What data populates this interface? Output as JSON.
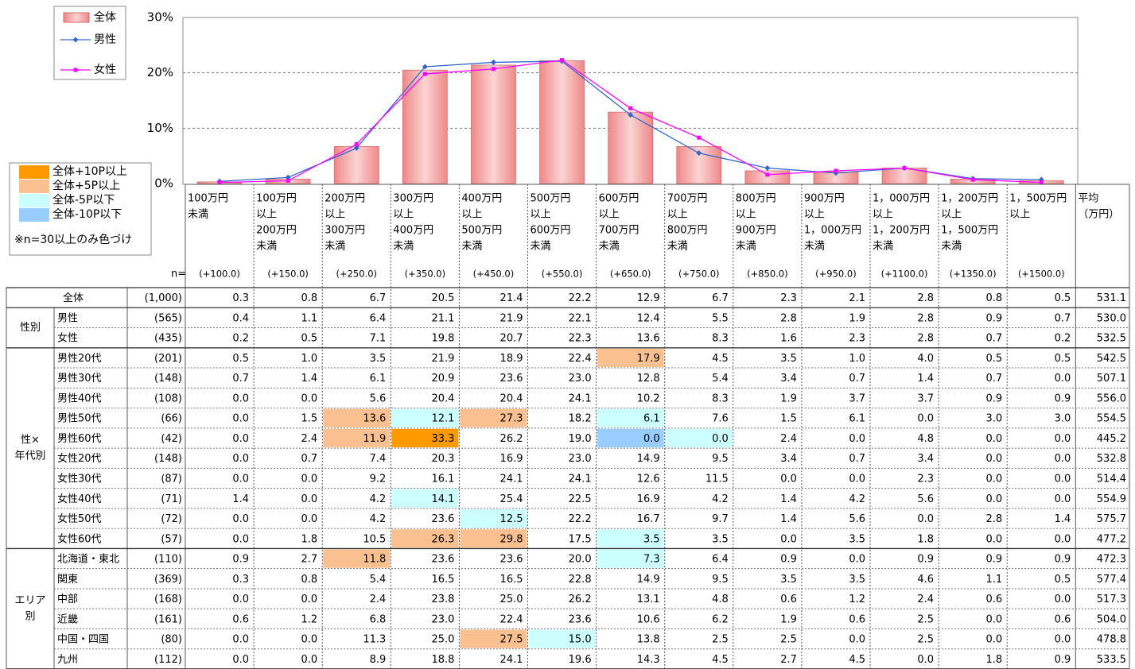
{
  "chart_data": {
    "type": "bar_line",
    "ylim": [
      0,
      30
    ],
    "yticks": [
      {
        "value": 0,
        "label": "0%"
      },
      {
        "value": 10,
        "label": "10%"
      },
      {
        "value": 20,
        "label": "20%"
      },
      {
        "value": 30,
        "label": "30%"
      }
    ],
    "grid": true,
    "series": [
      {
        "name": "全体",
        "type": "bar",
        "color": "#f29a9a",
        "values": [
          0.3,
          0.8,
          6.7,
          20.5,
          21.4,
          22.2,
          12.9,
          6.7,
          2.3,
          2.1,
          2.8,
          0.8,
          0.5
        ]
      },
      {
        "name": "男性",
        "type": "line",
        "marker": "diamond",
        "color": "#3366cc",
        "values": [
          0.4,
          1.1,
          6.4,
          21.1,
          21.9,
          22.1,
          12.4,
          5.5,
          2.8,
          1.9,
          2.8,
          0.9,
          0.7
        ]
      },
      {
        "name": "女性",
        "type": "line",
        "marker": "square",
        "color": "#ff00ff",
        "values": [
          0.2,
          0.5,
          7.1,
          19.8,
          20.7,
          22.3,
          13.6,
          8.3,
          1.6,
          2.3,
          2.8,
          0.7,
          0.2
        ]
      }
    ]
  },
  "table": {
    "key": [
      {
        "label": "全体+10P以上",
        "color": "#ff9900"
      },
      {
        "label": "全体+5P以上",
        "color": "#fac090"
      },
      {
        "label": "全体-5P以下",
        "color": "#ccffff"
      },
      {
        "label": "全体-10P以下",
        "color": "#99ccff"
      }
    ],
    "note": "※n=30以上のみ色づけ",
    "n_header": "n=",
    "columns": [
      {
        "lines": [
          "100万円",
          "未満"
        ],
        "midpoint": "(+100.0)"
      },
      {
        "lines": [
          "100万円",
          "以上",
          "200万円",
          "未満"
        ],
        "midpoint": "(+150.0)"
      },
      {
        "lines": [
          "200万円",
          "以上",
          "300万円",
          "未満"
        ],
        "midpoint": "(+250.0)"
      },
      {
        "lines": [
          "300万円",
          "以上",
          "400万円",
          "未満"
        ],
        "midpoint": "(+350.0)"
      },
      {
        "lines": [
          "400万円",
          "以上",
          "500万円",
          "未満"
        ],
        "midpoint": "(+450.0)"
      },
      {
        "lines": [
          "500万円",
          "以上",
          "600万円",
          "未満"
        ],
        "midpoint": "(+550.0)"
      },
      {
        "lines": [
          "600万円",
          "以上",
          "700万円",
          "未満"
        ],
        "midpoint": "(+650.0)"
      },
      {
        "lines": [
          "700万円",
          "以上",
          "800万円",
          "未満"
        ],
        "midpoint": "(+750.0)"
      },
      {
        "lines": [
          "800万円",
          "以上",
          "900万円",
          "未満"
        ],
        "midpoint": "(+850.0)"
      },
      {
        "lines": [
          "900万円",
          "以上",
          "1，000万円",
          "未満"
        ],
        "midpoint": "(+950.0)"
      },
      {
        "lines": [
          "1，000万円",
          "以上",
          "1，200万円",
          "未満"
        ],
        "midpoint": "(+1100.0)"
      },
      {
        "lines": [
          "1，200万円",
          "以上",
          "1，500万円",
          "未満"
        ],
        "midpoint": "(+1350.0)"
      },
      {
        "lines": [
          "1，500万円",
          "以上"
        ],
        "midpoint": "(+1500.0)"
      }
    ],
    "average_header": [
      "平均",
      "（万円）"
    ],
    "sections": [
      {
        "label": null,
        "rows": [
          {
            "label": "全体",
            "n": "(1,000)",
            "values": [
              "0.3",
              "0.8",
              "6.7",
              "20.5",
              "21.4",
              "22.2",
              "12.9",
              "6.7",
              "2.3",
              "2.1",
              "2.8",
              "0.8",
              "0.5"
            ],
            "average": "531.1"
          }
        ]
      },
      {
        "label": [
          "性別"
        ],
        "rows": [
          {
            "label": "男性",
            "n": "(565)",
            "values": [
              "0.4",
              "1.1",
              "6.4",
              "21.1",
              "21.9",
              "22.1",
              "12.4",
              "5.5",
              "2.8",
              "1.9",
              "2.8",
              "0.9",
              "0.7"
            ],
            "average": "530.0"
          },
          {
            "label": "女性",
            "n": "(435)",
            "values": [
              "0.2",
              "0.5",
              "7.1",
              "19.8",
              "20.7",
              "22.3",
              "13.6",
              "8.3",
              "1.6",
              "2.3",
              "2.8",
              "0.7",
              "0.2"
            ],
            "average": "532.5"
          }
        ]
      },
      {
        "label": [
          "性×",
          "年代別"
        ],
        "rows": [
          {
            "label": "男性20代",
            "n": "(201)",
            "values": [
              "0.5",
              "1.0",
              "3.5",
              "21.9",
              "18.9",
              "22.4",
              "17.9",
              "4.5",
              "3.5",
              "1.0",
              "4.0",
              "0.5",
              "0.5"
            ],
            "average": "542.5",
            "colors": [
              null,
              null,
              null,
              null,
              null,
              null,
              "#fac090",
              null,
              null,
              null,
              null,
              null,
              null
            ]
          },
          {
            "label": "男性30代",
            "n": "(148)",
            "values": [
              "0.7",
              "1.4",
              "6.1",
              "20.9",
              "23.6",
              "23.0",
              "12.8",
              "5.4",
              "3.4",
              "0.7",
              "1.4",
              "0.7",
              "0.0"
            ],
            "average": "507.1"
          },
          {
            "label": "男性40代",
            "n": "(108)",
            "values": [
              "0.0",
              "0.0",
              "5.6",
              "20.4",
              "20.4",
              "24.1",
              "10.2",
              "8.3",
              "1.9",
              "3.7",
              "3.7",
              "0.9",
              "0.9"
            ],
            "average": "556.0"
          },
          {
            "label": "男性50代",
            "n": "(66)",
            "values": [
              "0.0",
              "1.5",
              "13.6",
              "12.1",
              "27.3",
              "18.2",
              "6.1",
              "7.6",
              "1.5",
              "6.1",
              "0.0",
              "3.0",
              "3.0"
            ],
            "average": "554.5",
            "colors": [
              null,
              null,
              "#fac090",
              "#ccffff",
              "#fac090",
              null,
              "#ccffff",
              null,
              null,
              null,
              null,
              null,
              null
            ]
          },
          {
            "label": "男性60代",
            "n": "(42)",
            "values": [
              "0.0",
              "2.4",
              "11.9",
              "33.3",
              "26.2",
              "19.0",
              "0.0",
              "0.0",
              "2.4",
              "0.0",
              "4.8",
              "0.0",
              "0.0"
            ],
            "average": "445.2",
            "colors": [
              null,
              null,
              "#fac090",
              "#ff9900",
              null,
              null,
              "#99ccff",
              "#ccffff",
              null,
              null,
              null,
              null,
              null
            ]
          },
          {
            "label": "女性20代",
            "n": "(148)",
            "values": [
              "0.0",
              "0.7",
              "7.4",
              "20.3",
              "16.9",
              "23.0",
              "14.9",
              "9.5",
              "3.4",
              "0.7",
              "3.4",
              "0.0",
              "0.0"
            ],
            "average": "532.8"
          },
          {
            "label": "女性30代",
            "n": "(87)",
            "values": [
              "0.0",
              "0.0",
              "9.2",
              "16.1",
              "24.1",
              "24.1",
              "12.6",
              "11.5",
              "0.0",
              "0.0",
              "2.3",
              "0.0",
              "0.0"
            ],
            "average": "514.4"
          },
          {
            "label": "女性40代",
            "n": "(71)",
            "values": [
              "1.4",
              "0.0",
              "4.2",
              "14.1",
              "25.4",
              "22.5",
              "16.9",
              "4.2",
              "1.4",
              "4.2",
              "5.6",
              "0.0",
              "0.0"
            ],
            "average": "554.9",
            "colors": [
              null,
              null,
              null,
              "#ccffff",
              null,
              null,
              null,
              null,
              null,
              null,
              null,
              null,
              null
            ]
          },
          {
            "label": "女性50代",
            "n": "(72)",
            "values": [
              "0.0",
              "0.0",
              "4.2",
              "23.6",
              "12.5",
              "22.2",
              "16.7",
              "9.7",
              "1.4",
              "5.6",
              "0.0",
              "2.8",
              "1.4"
            ],
            "average": "575.7",
            "colors": [
              null,
              null,
              null,
              null,
              "#ccffff",
              null,
              null,
              null,
              null,
              null,
              null,
              null,
              null
            ]
          },
          {
            "label": "女性60代",
            "n": "(57)",
            "values": [
              "0.0",
              "1.8",
              "10.5",
              "26.3",
              "29.8",
              "17.5",
              "3.5",
              "3.5",
              "0.0",
              "3.5",
              "1.8",
              "0.0",
              "0.0"
            ],
            "average": "477.2",
            "colors": [
              null,
              null,
              null,
              "#fac090",
              "#fac090",
              null,
              "#ccffff",
              null,
              null,
              null,
              null,
              null,
              null
            ]
          }
        ]
      },
      {
        "label": [
          "エリア",
          "別"
        ],
        "rows": [
          {
            "label": "北海道・東北",
            "n": "(110)",
            "values": [
              "0.9",
              "2.7",
              "11.8",
              "23.6",
              "23.6",
              "20.0",
              "7.3",
              "6.4",
              "0.9",
              "0.0",
              "0.9",
              "0.9",
              "0.9"
            ],
            "average": "472.3",
            "colors": [
              null,
              null,
              "#fac090",
              null,
              null,
              null,
              "#ccffff",
              null,
              null,
              null,
              null,
              null,
              null
            ]
          },
          {
            "label": "関東",
            "n": "(369)",
            "values": [
              "0.3",
              "0.8",
              "5.4",
              "16.5",
              "16.5",
              "22.8",
              "14.9",
              "9.5",
              "3.5",
              "3.5",
              "4.6",
              "1.1",
              "0.5"
            ],
            "average": "577.4"
          },
          {
            "label": "中部",
            "n": "(168)",
            "values": [
              "0.0",
              "0.0",
              "2.4",
              "23.8",
              "25.0",
              "26.2",
              "13.1",
              "4.8",
              "0.6",
              "1.2",
              "2.4",
              "0.6",
              "0.0"
            ],
            "average": "517.3"
          },
          {
            "label": "近畿",
            "n": "(161)",
            "values": [
              "0.6",
              "1.2",
              "6.8",
              "23.0",
              "22.4",
              "23.6",
              "10.6",
              "6.2",
              "1.9",
              "0.6",
              "2.5",
              "0.0",
              "0.6"
            ],
            "average": "504.0"
          },
          {
            "label": "中国・四国",
            "n": "(80)",
            "values": [
              "0.0",
              "0.0",
              "11.3",
              "25.0",
              "27.5",
              "15.0",
              "13.8",
              "2.5",
              "2.5",
              "0.0",
              "2.5",
              "0.0",
              "0.0"
            ],
            "average": "478.8",
            "colors": [
              null,
              null,
              null,
              null,
              "#fac090",
              "#ccffff",
              null,
              null,
              null,
              null,
              null,
              null,
              null
            ]
          },
          {
            "label": "九州",
            "n": "(112)",
            "values": [
              "0.0",
              "0.0",
              "8.9",
              "18.8",
              "24.1",
              "19.6",
              "14.3",
              "4.5",
              "2.7",
              "4.5",
              "0.0",
              "1.8",
              "0.9"
            ],
            "average": "533.5"
          }
        ]
      }
    ]
  }
}
